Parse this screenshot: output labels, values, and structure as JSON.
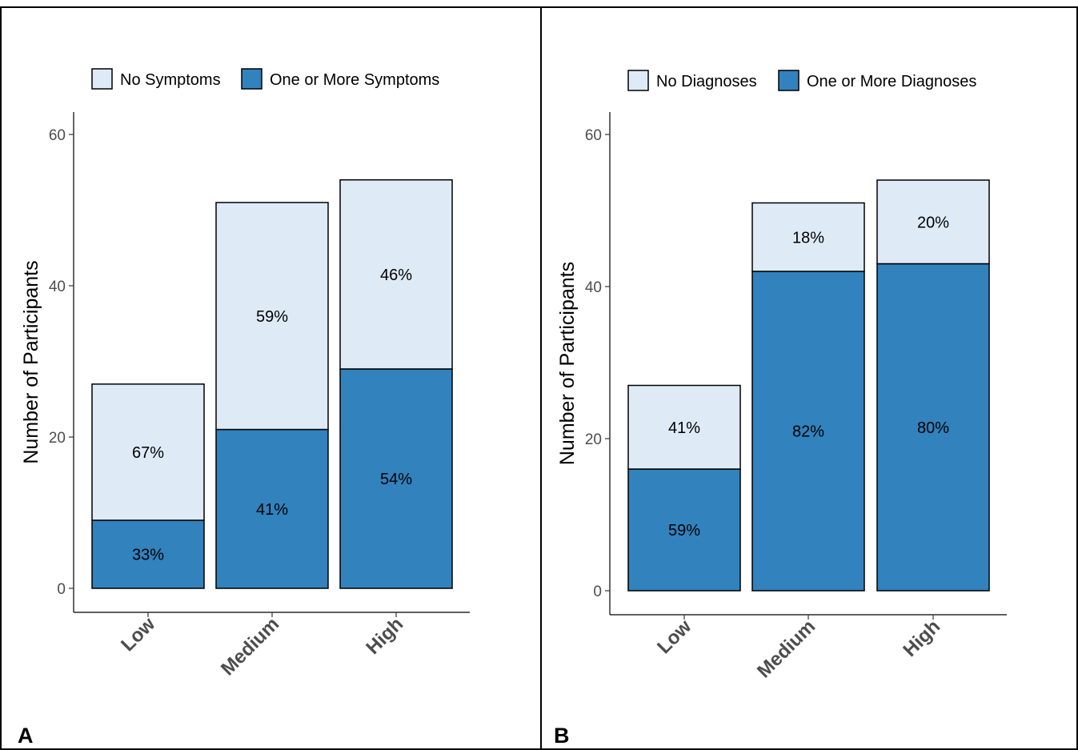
{
  "chart_data": [
    {
      "type": "bar",
      "stacked": true,
      "panel_label": "A",
      "categories": [
        "Low",
        "Medium",
        "High"
      ],
      "series": [
        {
          "name": "No Symptoms",
          "values": [
            18,
            30,
            25
          ],
          "labels": [
            "67%",
            "59%",
            "46%"
          ],
          "color": "#deebf7"
        },
        {
          "name": "One or More Symptoms",
          "values": [
            9,
            21,
            29
          ],
          "labels": [
            "33%",
            "41%",
            "54%"
          ],
          "color": "#3182bd"
        }
      ],
      "ylabel": "Number of Participants",
      "xlabel": "",
      "ylim": [
        0,
        63
      ],
      "yticks": [
        0,
        20,
        40,
        60
      ],
      "legend": "top",
      "grid": false
    },
    {
      "type": "bar",
      "stacked": true,
      "panel_label": "B",
      "categories": [
        "Low",
        "Medium",
        "High"
      ],
      "series": [
        {
          "name": "No Diagnoses",
          "values": [
            11,
            9,
            11
          ],
          "labels": [
            "41%",
            "18%",
            "20%"
          ],
          "color": "#deebf7"
        },
        {
          "name": "One or More Diagnoses",
          "values": [
            16,
            42,
            43
          ],
          "labels": [
            "59%",
            "82%",
            "80%"
          ],
          "color": "#3182bd"
        }
      ],
      "ylabel": "Number of Participants",
      "xlabel": "",
      "ylim": [
        0,
        63
      ],
      "yticks": [
        0,
        20,
        40,
        60
      ],
      "legend": "top",
      "grid": false
    }
  ]
}
